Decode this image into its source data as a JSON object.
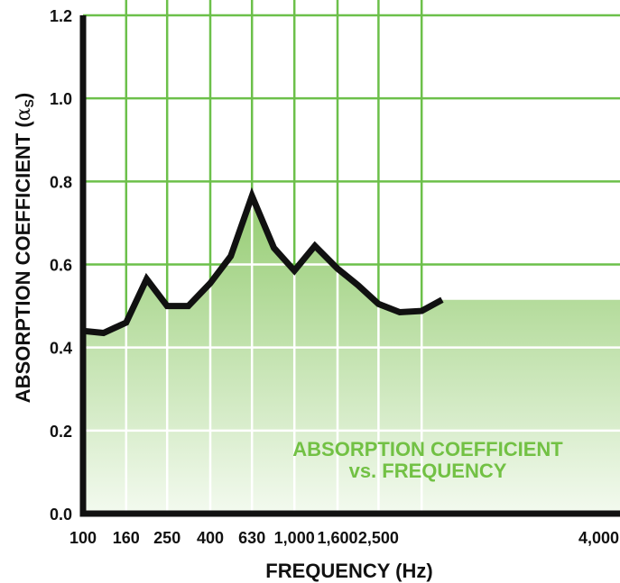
{
  "chart_data": {
    "type": "area",
    "title": "",
    "xlabel": "FREQUENCY (Hz)",
    "ylabel_main": "ABSORPTION COEFFICIENT (",
    "ylabel_symbol": "α",
    "ylabel_sub": "S",
    "ylabel_close": ")",
    "annotation": [
      "ABSORPTION COEFFICIENT",
      "vs. FREQUENCY"
    ],
    "x_tick_labels": [
      "100",
      "160",
      "250",
      "400",
      "630",
      "1,000",
      "1,600",
      "2,500",
      "4,000"
    ],
    "y_tick_labels": [
      "0.0",
      "0.2",
      "0.4",
      "0.6",
      "0.8",
      "1.0",
      "1.2"
    ],
    "ylim": [
      0,
      1.2
    ],
    "grid": true,
    "frequencies": [
      100,
      125,
      160,
      200,
      250,
      315,
      400,
      500,
      630,
      800,
      1000,
      1250,
      1600,
      2000,
      2500,
      3150,
      4000,
      5000
    ],
    "values": [
      0.44,
      0.435,
      0.46,
      0.565,
      0.5,
      0.5,
      0.555,
      0.62,
      0.765,
      0.64,
      0.585,
      0.645,
      0.59,
      0.55,
      0.505,
      0.485,
      0.488,
      0.515
    ],
    "colors": {
      "line": "#111111",
      "grid_above": "#6cc04a",
      "grid_below": "#ffffff",
      "fill_top": "#95cc72",
      "fill_bottom": "#f3faef",
      "annotation": "#72c144",
      "axis": "#111111"
    }
  }
}
